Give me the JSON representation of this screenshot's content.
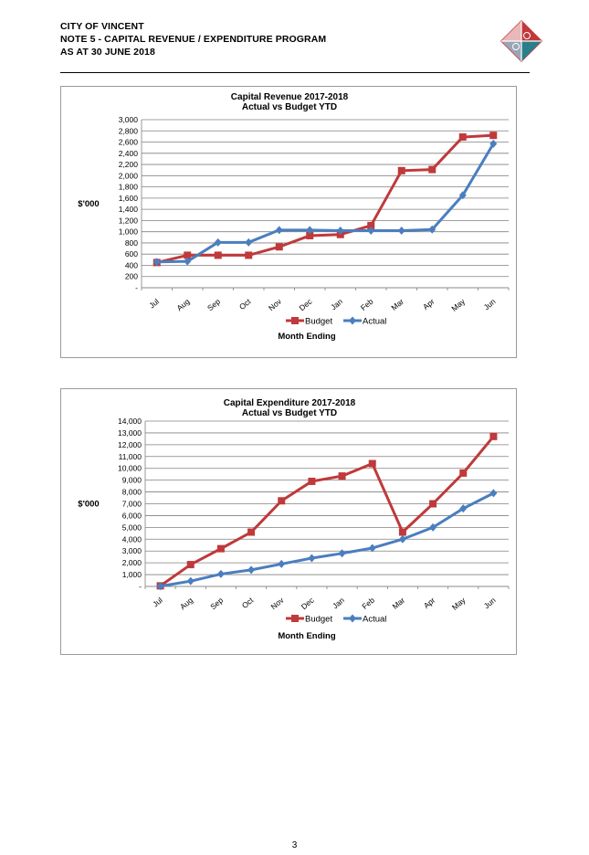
{
  "header": {
    "line1": "CITY OF VINCENT",
    "line2": "NOTE 5 - CAPITAL REVENUE / EXPENDITURE PROGRAM",
    "line3": "AS AT 30 JUNE 2018"
  },
  "page_number": "3",
  "logo_icon": "city-of-vincent-logo",
  "colors": {
    "budget": "#c0393b",
    "actual": "#4a7ebf",
    "grid": "#808080"
  },
  "chart_data": [
    {
      "type": "line",
      "title": "Capital Revenue 2017-2018",
      "subtitle": "Actual vs Budget YTD",
      "ylabel": "$'000",
      "xlabel": "Month Ending",
      "x": [
        "Jul",
        "Aug",
        "Sep",
        "Oct",
        "Nov",
        "Dec",
        "Jan",
        "Feb",
        "Mar",
        "Apr",
        "May",
        "Jun"
      ],
      "ylim": [
        0,
        3000
      ],
      "yticks": [
        "-",
        "200",
        "400",
        "600",
        "800",
        "1,000",
        "1,200",
        "1,400",
        "1,600",
        "1,800",
        "2,000",
        "2,200",
        "2,400",
        "2,600",
        "2,800",
        "3,000"
      ],
      "ystep": 200,
      "legend_position": "bottom",
      "series": [
        {
          "name": "Budget",
          "color": "#c0393b",
          "marker": "square",
          "values": [
            450,
            580,
            580,
            580,
            730,
            930,
            950,
            1110,
            2090,
            2110,
            2690,
            2720
          ]
        },
        {
          "name": "Actual",
          "color": "#4a7ebf",
          "marker": "diamond",
          "values": [
            460,
            470,
            810,
            810,
            1030,
            1030,
            1020,
            1020,
            1020,
            1040,
            1650,
            2570
          ]
        }
      ]
    },
    {
      "type": "line",
      "title": "Capital Expenditure 2017-2018",
      "subtitle": "Actual vs Budget YTD",
      "ylabel": "$'000",
      "xlabel": "Month Ending",
      "x": [
        "Jul",
        "Aug",
        "Sep",
        "Oct",
        "Nov",
        "Dec",
        "Jan",
        "Feb",
        "Mar",
        "Apr",
        "May",
        "Jun"
      ],
      "ylim": [
        0,
        14000
      ],
      "yticks": [
        "-",
        "1,000",
        "2,000",
        "3,000",
        "4,000",
        "5,000",
        "6,000",
        "7,000",
        "8,000",
        "9,000",
        "10,000",
        "11,000",
        "12,000",
        "13,000",
        "14,000"
      ],
      "ystep": 1000,
      "legend_position": "bottom",
      "series": [
        {
          "name": "Budget",
          "color": "#c0393b",
          "marker": "square",
          "values": [
            50,
            1850,
            3200,
            4600,
            7250,
            8900,
            9350,
            10400,
            4600,
            7000,
            9600,
            12700
          ]
        },
        {
          "name": "Actual",
          "color": "#4a7ebf",
          "marker": "diamond",
          "values": [
            20,
            450,
            1050,
            1400,
            1900,
            2400,
            2800,
            3250,
            4000,
            5000,
            6600,
            7900
          ]
        }
      ]
    }
  ]
}
